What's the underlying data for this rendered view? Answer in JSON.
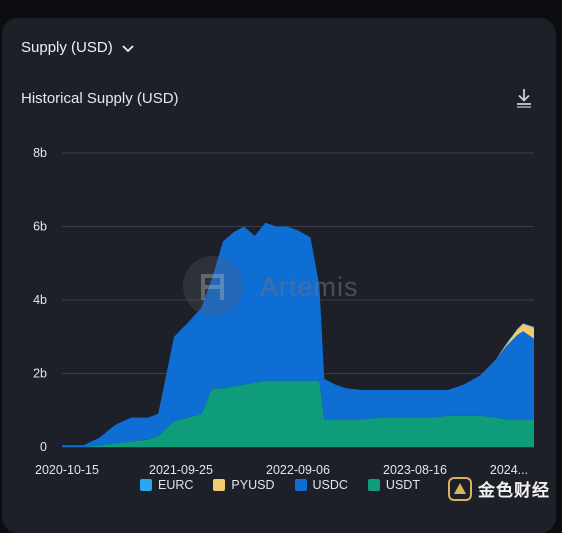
{
  "header": {
    "dropdown_label": "Supply (USD)",
    "chart_title": "Historical Supply (USD)"
  },
  "watermark": {
    "text": "Artemis"
  },
  "brand": {
    "text": "金色财经"
  },
  "colors": {
    "card_bg": "#1e2029",
    "EURC": "#29a8f2",
    "PYUSD": "#f5ca6e",
    "USDC": "#0f6ed4",
    "USDT": "#0f9c7a"
  },
  "chart_data": {
    "type": "area",
    "stacked": true,
    "title": "Historical Supply (USD)",
    "xlabel": "",
    "ylabel": "",
    "ylim": [
      0,
      8
    ],
    "yticks": [
      0,
      2,
      4,
      6,
      8
    ],
    "ytick_labels": [
      "0",
      "2b",
      "4b",
      "6b",
      "8b"
    ],
    "xtick_labels": [
      "2020-10-15",
      "2021-09-25",
      "2022-09-06",
      "2023-08-16",
      "2024..."
    ],
    "grid": true,
    "legend_position": "bottom",
    "x": [
      "2020-10-01",
      "2020-10-15",
      "2020-12-01",
      "2021-01-15",
      "2021-03-01",
      "2021-04-15",
      "2021-06-01",
      "2021-07-01",
      "2021-08-15",
      "2021-09-25",
      "2021-11-01",
      "2021-12-01",
      "2022-01-01",
      "2022-02-01",
      "2022-03-01",
      "2022-04-01",
      "2022-05-01",
      "2022-06-01",
      "2022-07-01",
      "2022-08-01",
      "2022-09-06",
      "2022-10-01",
      "2022-10-15",
      "2022-11-15",
      "2022-12-15",
      "2023-02-01",
      "2023-03-15",
      "2023-05-01",
      "2023-06-15",
      "2023-08-16",
      "2023-10-01",
      "2023-11-15",
      "2024-01-01",
      "2024-02-15",
      "2024-03-15",
      "2024-04-15",
      "2024-05-01",
      "2024-06-01"
    ],
    "series": [
      {
        "name": "USDT",
        "values": [
          0,
          0,
          0,
          0.05,
          0.1,
          0.15,
          0.2,
          0.3,
          0.7,
          0.8,
          0.9,
          1.6,
          1.6,
          1.65,
          1.7,
          1.75,
          1.8,
          1.8,
          1.8,
          1.8,
          1.8,
          1.8,
          0.75,
          0.75,
          0.75,
          0.75,
          0.8,
          0.8,
          0.8,
          0.8,
          0.85,
          0.85,
          0.85,
          0.8,
          0.75,
          0.75,
          0.75,
          0.75
        ]
      },
      {
        "name": "USDC",
        "values": [
          0.05,
          0.05,
          0.05,
          0.2,
          0.5,
          0.65,
          0.6,
          0.6,
          2.3,
          2.6,
          2.9,
          3.0,
          4.0,
          4.2,
          4.3,
          4.0,
          4.3,
          4.2,
          4.2,
          4.1,
          3.9,
          2.6,
          1.1,
          0.95,
          0.85,
          0.8,
          0.75,
          0.75,
          0.75,
          0.75,
          0.7,
          0.85,
          1.1,
          1.6,
          2.0,
          2.3,
          2.4,
          2.2
        ]
      },
      {
        "name": "PYUSD",
        "values": [
          0,
          0,
          0,
          0,
          0,
          0,
          0,
          0,
          0,
          0,
          0,
          0,
          0,
          0,
          0,
          0,
          0,
          0,
          0,
          0,
          0,
          0,
          0,
          0,
          0,
          0,
          0,
          0,
          0,
          0,
          0,
          0,
          0,
          0,
          0.05,
          0.15,
          0.2,
          0.3
        ]
      },
      {
        "name": "EURC",
        "values": [
          0,
          0,
          0,
          0,
          0,
          0,
          0,
          0,
          0,
          0,
          0,
          0,
          0,
          0,
          0,
          0,
          0,
          0,
          0,
          0,
          0,
          0,
          0,
          0,
          0,
          0,
          0,
          0,
          0,
          0,
          0,
          0,
          0,
          0,
          0.02,
          0.02,
          0.02,
          0.02
        ]
      }
    ]
  },
  "legend": [
    {
      "name": "EURC",
      "color": "#29a8f2"
    },
    {
      "name": "PYUSD",
      "color": "#f5ca6e"
    },
    {
      "name": "USDC",
      "color": "#0f6ed4"
    },
    {
      "name": "USDT",
      "color": "#0f9c7a"
    }
  ]
}
